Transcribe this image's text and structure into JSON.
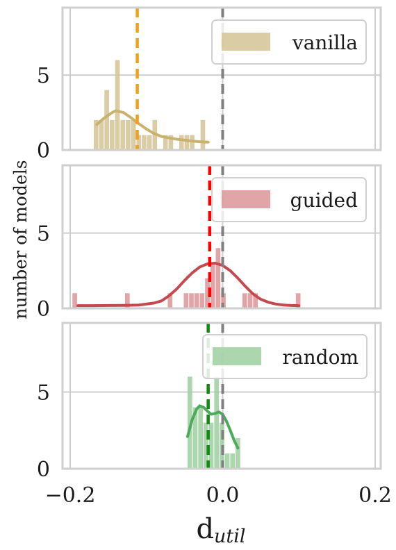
{
  "chart_data": {
    "type": "histogram",
    "ylabel": "number of models",
    "xlabel_main": "d",
    "xlabel_sub": "util",
    "xlim": [
      -0.2,
      0.2
    ],
    "ylim": [
      0,
      9.5
    ],
    "x_ticks": [
      -0.2,
      0.0,
      0.2
    ],
    "x_tick_labels": [
      "−0.2",
      "0.0",
      "0.2"
    ],
    "y_ticks": [
      0,
      5
    ],
    "y_tick_labels": [
      "0",
      "5"
    ],
    "grid": true,
    "bin_width": 0.007,
    "reference_line": {
      "x": 0.0,
      "color": "#808080"
    },
    "panels": [
      {
        "name": "vanilla",
        "color": "#d4c497",
        "kde_color": "#c8b26e",
        "mean_color": "#f0a11e",
        "mean": -0.112,
        "legend_position": "top-right",
        "bins": [
          {
            "x": -0.166,
            "count": 2
          },
          {
            "x": -0.159,
            "count": 2
          },
          {
            "x": -0.152,
            "count": 4
          },
          {
            "x": -0.145,
            "count": 2
          },
          {
            "x": -0.138,
            "count": 6
          },
          {
            "x": -0.131,
            "count": 2
          },
          {
            "x": -0.124,
            "count": 2
          },
          {
            "x": -0.117,
            "count": 2
          },
          {
            "x": -0.11,
            "count": 1
          },
          {
            "x": -0.103,
            "count": 1
          },
          {
            "x": -0.096,
            "count": 1
          },
          {
            "x": -0.089,
            "count": 2
          },
          {
            "x": -0.075,
            "count": 1
          },
          {
            "x": -0.068,
            "count": 1
          },
          {
            "x": -0.054,
            "count": 1
          },
          {
            "x": -0.047,
            "count": 1
          },
          {
            "x": -0.04,
            "count": 1
          },
          {
            "x": -0.026,
            "count": 2
          }
        ],
        "kde": [
          [
            -0.165,
            1.7
          ],
          [
            -0.155,
            2.15
          ],
          [
            -0.145,
            2.5
          ],
          [
            -0.14,
            2.62
          ],
          [
            -0.13,
            2.5
          ],
          [
            -0.12,
            2.15
          ],
          [
            -0.11,
            1.75
          ],
          [
            -0.1,
            1.4
          ],
          [
            -0.09,
            1.1
          ],
          [
            -0.08,
            0.9
          ],
          [
            -0.07,
            0.8
          ],
          [
            -0.06,
            0.72
          ],
          [
            -0.05,
            0.66
          ],
          [
            -0.04,
            0.6
          ],
          [
            -0.03,
            0.55
          ],
          [
            -0.019,
            0.52
          ]
        ]
      },
      {
        "name": "guided",
        "color": "#dc9498",
        "kde_color": "#c54a50",
        "mean_color": "#ff0000",
        "mean": -0.017,
        "legend_position": "top-right",
        "bins": [
          {
            "x": -0.194,
            "count": 1
          },
          {
            "x": -0.125,
            "count": 1
          },
          {
            "x": -0.069,
            "count": 1
          },
          {
            "x": -0.048,
            "count": 1
          },
          {
            "x": -0.041,
            "count": 1
          },
          {
            "x": -0.034,
            "count": 1
          },
          {
            "x": -0.027,
            "count": 1
          },
          {
            "x": -0.02,
            "count": 2
          },
          {
            "x": -0.013,
            "count": 3
          },
          {
            "x": -0.006,
            "count": 4
          },
          {
            "x": 0.001,
            "count": 1
          },
          {
            "x": 0.029,
            "count": 1
          },
          {
            "x": 0.036,
            "count": 1
          },
          {
            "x": 0.043,
            "count": 1
          },
          {
            "x": 0.099,
            "count": 1
          }
        ],
        "kde": [
          [
            -0.19,
            0.18
          ],
          [
            -0.17,
            0.18
          ],
          [
            -0.15,
            0.19
          ],
          [
            -0.13,
            0.2
          ],
          [
            -0.11,
            0.22
          ],
          [
            -0.09,
            0.35
          ],
          [
            -0.08,
            0.5
          ],
          [
            -0.07,
            0.85
          ],
          [
            -0.06,
            1.3
          ],
          [
            -0.05,
            1.85
          ],
          [
            -0.04,
            2.35
          ],
          [
            -0.03,
            2.75
          ],
          [
            -0.02,
            2.95
          ],
          [
            -0.01,
            3.0
          ],
          [
            0.0,
            2.85
          ],
          [
            0.01,
            2.5
          ],
          [
            0.02,
            2.0
          ],
          [
            0.03,
            1.45
          ],
          [
            0.04,
            0.95
          ],
          [
            0.05,
            0.6
          ],
          [
            0.06,
            0.4
          ],
          [
            0.07,
            0.28
          ],
          [
            0.08,
            0.22
          ],
          [
            0.09,
            0.19
          ],
          [
            0.1,
            0.18
          ]
        ]
      },
      {
        "name": "random",
        "color": "#9ecfa0",
        "kde_color": "#4caa5a",
        "mean_color": "#118a11",
        "mean": -0.019,
        "legend_position": "top-right",
        "bins": [
          {
            "x": -0.043,
            "count": 6
          },
          {
            "x": -0.036,
            "count": 4
          },
          {
            "x": -0.029,
            "count": 4
          },
          {
            "x": -0.022,
            "count": 3
          },
          {
            "x": -0.015,
            "count": 3
          },
          {
            "x": -0.008,
            "count": 6
          },
          {
            "x": -0.001,
            "count": 3
          },
          {
            "x": 0.006,
            "count": 1
          },
          {
            "x": 0.013,
            "count": 1
          },
          {
            "x": 0.02,
            "count": 2
          }
        ],
        "kde": [
          [
            -0.046,
            2.1
          ],
          [
            -0.04,
            3.2
          ],
          [
            -0.034,
            3.9
          ],
          [
            -0.03,
            4.1
          ],
          [
            -0.025,
            4.0
          ],
          [
            -0.02,
            3.75
          ],
          [
            -0.015,
            3.55
          ],
          [
            -0.01,
            3.6
          ],
          [
            -0.005,
            3.7
          ],
          [
            0.0,
            3.55
          ],
          [
            0.005,
            3.1
          ],
          [
            0.01,
            2.5
          ],
          [
            0.015,
            1.85
          ],
          [
            0.02,
            1.35
          ]
        ]
      }
    ]
  }
}
